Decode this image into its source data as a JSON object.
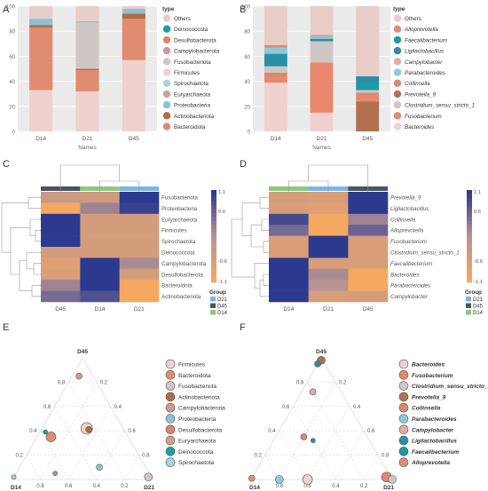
{
  "panel_letters": [
    "A",
    "B",
    "C",
    "D",
    "E",
    "F"
  ],
  "colors": {
    "Others": "#e8ccc8",
    "Deinococcota": "#14a3a3",
    "Desulfobacterota": "#d9876a",
    "Campylobacterota": "#d09a90",
    "Fusobacteriota": "#cfc7c5",
    "Firmicutes": "#f0d1cd",
    "Spirochaetota": "#a9d4dd",
    "Euryarchaeota": "#cfa28c",
    "Proteobacteria": "#8bc3d3",
    "Actinobacteriota": "#b36a45",
    "Bacteroidota": "#e08c70",
    "Alloprevotella": "#e08c70",
    "Faecalibacterium": "#1a9ba6",
    "Ligilactobacillus": "#2a8fa5",
    "Campylobacter": "#e2ad9e",
    "Parabacteroides": "#8ec9d7",
    "Collinsella": "#d9896e",
    "Prevotella_9": "#b3704e",
    "Clostridium_sensu_stricto_1": "#cfc7c5",
    "Fusobacterium": "#e8876b",
    "Bacteroides": "#f0d1cd",
    "heat_high": "#2b3a8f",
    "heat_mid": "#b79393",
    "heat_low": "#f4a860",
    "group_D21": "#7cb4e6",
    "group_D45": "#4a5560",
    "group_D14": "#8fc781"
  },
  "legend_title": "type",
  "legend_A": [
    "Others",
    "Deinococcota",
    "Desulfobacterota",
    "Campylobacterota",
    "Fusobacteriota",
    "Firmicutes",
    "Spirochaetota",
    "Euryarchaeota",
    "Proteobacteria",
    "Actinobacteriota",
    "Bacteroidota"
  ],
  "legend_B": [
    "Others",
    "Alloprevotella",
    "Faecalibacterium",
    "Ligilactobacillus",
    "Campylobacter",
    "Parabacteroides",
    "Collinsella",
    "Prevotella_9",
    "Clostridium_sensu_stricto_1",
    "Fusobacterium",
    "Bacteroides"
  ],
  "heatmap_legend": {
    "title": "Group",
    "ticks": [
      "1.1",
      "0.6",
      "-0.6",
      "-1.1"
    ],
    "groups": [
      "D21",
      "D45",
      "D14"
    ]
  },
  "ternary_axes": {
    "top": "D45",
    "left": "D14",
    "right": "D21",
    "ticks": [
      "0.8",
      "0.6",
      "0.4",
      "0.2"
    ]
  },
  "legend_E": [
    "Firmicutes",
    "Bacteroidota",
    "Fusobacteriota",
    "Actinobacteriota",
    "Campylobacterota",
    "Proteobacteria",
    "Desulfobacterota",
    "Euryarchaeota",
    "Deinococcota",
    "Spirochaetota"
  ],
  "legend_F": [
    "Bacteroides",
    "Fusobacterium",
    "Clostridium_sensu_stricto_1",
    "Prevotella_9",
    "Collinsella",
    "Parabacteroides",
    "Campylobacter",
    "Ligilactobacillus",
    "Faecalibacterium",
    "Alloprevotella"
  ],
  "chart_data": [
    {
      "panel": "A",
      "type": "bar",
      "stacked": true,
      "categories": [
        "D14",
        "D21",
        "D45"
      ],
      "xlabel": "Names",
      "ylabel": "",
      "ylim": [
        0,
        100
      ],
      "yticks": [
        0,
        20,
        40,
        60,
        80,
        100
      ],
      "series": [
        {
          "name": "Firmicutes",
          "values": [
            33,
            32,
            57
          ]
        },
        {
          "name": "Bacteroidota",
          "values": [
            50,
            17,
            33
          ]
        },
        {
          "name": "Actinobacteriota",
          "values": [
            2,
            1,
            4
          ]
        },
        {
          "name": "Fusobacteriota",
          "values": [
            0,
            37,
            0
          ]
        },
        {
          "name": "Proteobacteria",
          "values": [
            5,
            1,
            4
          ]
        },
        {
          "name": "Others",
          "values": [
            10,
            12,
            2
          ]
        }
      ]
    },
    {
      "panel": "B",
      "type": "bar",
      "stacked": true,
      "categories": [
        "D14",
        "D21",
        "D45"
      ],
      "xlabel": "Names",
      "ylabel": "",
      "ylim": [
        0,
        100
      ],
      "yticks": [
        0,
        20,
        40,
        60,
        80,
        100
      ],
      "series": [
        {
          "name": "Bacteroides",
          "values": [
            39,
            15,
            0
          ]
        },
        {
          "name": "Prevotella_9",
          "values": [
            0,
            0,
            24
          ]
        },
        {
          "name": "Fusobacterium",
          "values": [
            4,
            39,
            5
          ]
        },
        {
          "name": "Collinsella",
          "values": [
            4,
            1,
            2
          ]
        },
        {
          "name": "Clostridium_sensu_stricto_1",
          "values": [
            5,
            17,
            2
          ]
        },
        {
          "name": "Faecalibacterium",
          "values": [
            0,
            0,
            6
          ]
        },
        {
          "name": "Ligilactobacillus",
          "values": [
            10,
            2,
            5
          ]
        },
        {
          "name": "Parabacteroides",
          "values": [
            5,
            2,
            0
          ]
        },
        {
          "name": "Alloprevotella",
          "values": [
            2,
            1,
            0
          ]
        },
        {
          "name": "Others",
          "values": [
            31,
            23,
            56
          ]
        }
      ]
    },
    {
      "panel": "C",
      "type": "heatmap",
      "columns": [
        "D45",
        "D14",
        "D21"
      ],
      "rows": [
        "Fusobacteriota",
        "Proteobacteria",
        "Euryarchaeota",
        "Firmicutes",
        "Spirochaetota",
        "Deinococcota",
        "Campylobacterota",
        "Desulfobacterota",
        "Bacteroidota",
        "Actinobacteriota"
      ],
      "values": [
        [
          -0.3,
          -0.4,
          1.1
        ],
        [
          -1.1,
          0.2,
          1.0
        ],
        [
          1.1,
          -0.5,
          -0.5
        ],
        [
          1.1,
          -0.5,
          -0.5
        ],
        [
          1.1,
          -0.5,
          -0.5
        ],
        [
          -0.5,
          -0.5,
          -0.5
        ],
        [
          -0.7,
          1.1,
          0.1
        ],
        [
          -0.6,
          1.1,
          -0.5
        ],
        [
          0.2,
          1.1,
          -1.1
        ],
        [
          0.5,
          0.8,
          -1.1
        ]
      ]
    },
    {
      "panel": "D",
      "type": "heatmap",
      "columns": [
        "D14",
        "D21",
        "D45"
      ],
      "rows": [
        "Prevotella_9",
        "Ligilactobacillus",
        "Collinsella",
        "Alloprevotella",
        "Fusobacterium",
        "Clostridium_sensu_stricto_1",
        "Faecalibacterium",
        "Bacteroides",
        "Parabacteroides",
        "Campylobacter"
      ],
      "values": [
        [
          -0.5,
          -0.6,
          1.1
        ],
        [
          -0.6,
          -0.7,
          1.1
        ],
        [
          0.9,
          -1.1,
          0.2
        ],
        [
          0.5,
          -1.1,
          0.6
        ],
        [
          -0.6,
          1.1,
          -0.6
        ],
        [
          -0.6,
          1.1,
          -0.6
        ],
        [
          1.1,
          -0.6,
          -0.6
        ],
        [
          1.1,
          0.1,
          -1.1
        ],
        [
          1.1,
          0.0,
          -1.1
        ],
        [
          1.1,
          -0.6,
          -0.5
        ]
      ]
    },
    {
      "panel": "E",
      "type": "scatter",
      "ternary": true,
      "axes": [
        "D14",
        "D21",
        "D45"
      ],
      "points": [
        {
          "name": "Firmicutes",
          "D14": 0.26,
          "D21": 0.32,
          "D45": 0.42,
          "size": 5
        },
        {
          "name": "Bacteroidota",
          "D14": 0.55,
          "D21": 0.1,
          "D45": 0.35,
          "size": 4
        },
        {
          "name": "Fusobacteriota",
          "D14": 0.02,
          "D21": 0.96,
          "D45": 0.02,
          "size": 3
        },
        {
          "name": "Actinobacteriota",
          "D14": 0.25,
          "D21": 0.34,
          "D45": 0.41,
          "size": 2
        },
        {
          "name": "Campylobacterota",
          "D14": 0.1,
          "D21": 0.05,
          "D45": 0.85,
          "size": 2
        },
        {
          "name": "Proteobacteria",
          "D14": 0.33,
          "D21": 0.57,
          "D45": 0.1,
          "size": 2
        },
        {
          "name": "Desulfobacterota",
          "D14": 0.67,
          "D21": 0.28,
          "D45": 0.05,
          "size": 1
        },
        {
          "name": "Euryarchaeota",
          "D14": 0.98,
          "D21": 0.0,
          "D45": 0.02,
          "size": 1
        },
        {
          "name": "Deinococcota",
          "D14": 0.57,
          "D21": 0.04,
          "D45": 0.39,
          "size": 1
        },
        {
          "name": "Spirochaetota",
          "D14": 0.98,
          "D21": 0.0,
          "D45": 0.02,
          "size": 1
        }
      ]
    },
    {
      "panel": "F",
      "type": "scatter",
      "ternary": true,
      "axes": [
        "D14",
        "D21",
        "D45"
      ],
      "points": [
        {
          "name": "Bacteroides",
          "D14": 0.6,
          "D21": 0.4,
          "D45": 0.0,
          "size": 4
        },
        {
          "name": "Fusobacterium",
          "D14": 0.03,
          "D21": 0.95,
          "D45": 0.02,
          "size": 4
        },
        {
          "name": "Clostridium_sensu_stricto_1",
          "D14": 0.0,
          "D21": 1.0,
          "D45": 0.0,
          "size": 3
        },
        {
          "name": "Prevotella_9",
          "D14": 0.01,
          "D21": 0.01,
          "D45": 0.98,
          "size": 3
        },
        {
          "name": "Collinsella",
          "D14": 0.45,
          "D21": 0.2,
          "D45": 0.35,
          "size": 2
        },
        {
          "name": "Parabacteroides",
          "D14": 0.8,
          "D21": 0.2,
          "D45": 0.0,
          "size": 3
        },
        {
          "name": "Campylobacter",
          "D14": 0.2,
          "D21": 0.08,
          "D45": 0.72,
          "size": 2
        },
        {
          "name": "Ligilactobacillus",
          "D14": 0.05,
          "D21": 0.0,
          "D45": 0.95,
          "size": 2
        },
        {
          "name": "Faecalibacterium",
          "D14": 0.4,
          "D21": 0.28,
          "D45": 0.32,
          "size": 1
        },
        {
          "name": "Alloprevotella",
          "D14": 0.99,
          "D21": 0.0,
          "D45": 0.01,
          "size": 2
        }
      ]
    }
  ]
}
